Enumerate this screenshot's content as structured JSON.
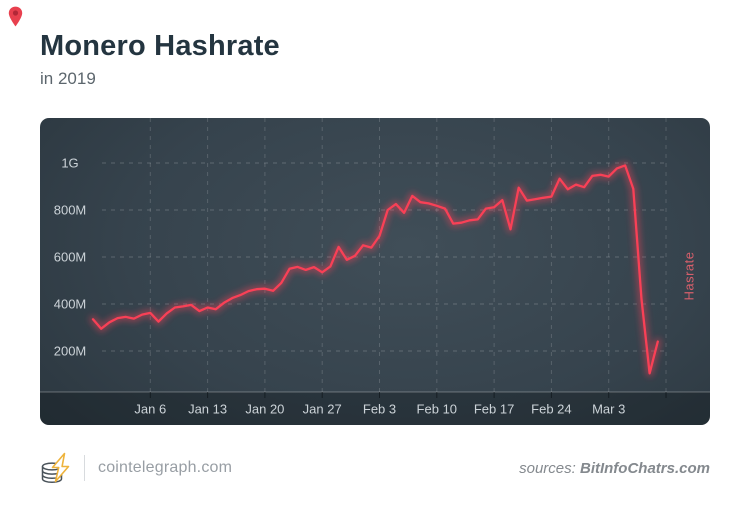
{
  "header": {
    "title": "Monero Hashrate",
    "subtitle": "in 2019"
  },
  "footer": {
    "site": "cointelegraph.com",
    "sources_label": "sources:",
    "source_name": "BitInfoChatrs.com"
  },
  "icons": {
    "pin": "location-pin-icon",
    "logo": "cointelegraph-coin-stack-lightning-logo"
  },
  "colors": {
    "pin": "#e8404e",
    "title_text": "#243540",
    "line": "#f94056",
    "line_glow": "rgba(249,64,86,0.45)",
    "panel_dark": "#222c33",
    "grid": "rgba(255,255,255,0.20)",
    "tick_text": "#ccd3d8",
    "right_axis_title": "#d75f6b",
    "logo_gold": "#eeb33c",
    "logo_coin": "#4a535a"
  },
  "chart_data": {
    "type": "line",
    "title": "Monero Hashrate",
    "subtitle": "in 2019",
    "ylabel_right": "Hasrate",
    "unit": "hashes per second",
    "ylim": [
      0,
      1180000000
    ],
    "grid": "dashed",
    "legend_position": "none",
    "y_ticks": [
      {
        "label": "1G",
        "value": 1000
      },
      {
        "label": "800M",
        "value": 800
      },
      {
        "label": "600M",
        "value": 600
      },
      {
        "label": "400M",
        "value": 400
      },
      {
        "label": "200M",
        "value": 200
      }
    ],
    "x_ticks": [
      {
        "label": "Jan 6",
        "day_offset": 7
      },
      {
        "label": "Jan 13",
        "day_offset": 14
      },
      {
        "label": "Jan 20",
        "day_offset": 21
      },
      {
        "label": "Jan 27",
        "day_offset": 28
      },
      {
        "label": "Feb 3",
        "day_offset": 35
      },
      {
        "label": "Feb 10",
        "day_offset": 42
      },
      {
        "label": "Feb 17",
        "day_offset": 49
      },
      {
        "label": "Feb 24",
        "day_offset": 56
      },
      {
        "label": "Mar 3",
        "day_offset": 63
      },
      {
        "label": "",
        "day_offset": 70
      }
    ],
    "value_unit_of_points": "MH/s",
    "series": [
      {
        "name": "Hashrate",
        "color": "#f94056",
        "points": [
          [
            "Dec 30",
            335
          ],
          [
            "Dec 31",
            295
          ],
          [
            "Jan 1",
            322
          ],
          [
            "Jan 2",
            340
          ],
          [
            "Jan 3",
            345
          ],
          [
            "Jan 4",
            338
          ],
          [
            "Jan 5",
            355
          ],
          [
            "Jan 6",
            362
          ],
          [
            "Jan 7",
            325
          ],
          [
            "Jan 8",
            360
          ],
          [
            "Jan 9",
            385
          ],
          [
            "Jan 10",
            390
          ],
          [
            "Jan 11",
            396
          ],
          [
            "Jan 12",
            370
          ],
          [
            "Jan 13",
            385
          ],
          [
            "Jan 14",
            378
          ],
          [
            "Jan 15",
            405
          ],
          [
            "Jan 16",
            425
          ],
          [
            "Jan 17",
            438
          ],
          [
            "Jan 18",
            455
          ],
          [
            "Jan 19",
            463
          ],
          [
            "Jan 20",
            465
          ],
          [
            "Jan 21",
            456
          ],
          [
            "Jan 22",
            490
          ],
          [
            "Jan 23",
            550
          ],
          [
            "Jan 24",
            558
          ],
          [
            "Jan 25",
            545
          ],
          [
            "Jan 26",
            557
          ],
          [
            "Jan 27",
            535
          ],
          [
            "Jan 28",
            560
          ],
          [
            "Jan 29",
            643
          ],
          [
            "Jan 30",
            588
          ],
          [
            "Jan 31",
            605
          ],
          [
            "Feb 1",
            650
          ],
          [
            "Feb 2",
            640
          ],
          [
            "Feb 3",
            690
          ],
          [
            "Feb 4",
            800
          ],
          [
            "Feb 5",
            825
          ],
          [
            "Feb 6",
            788
          ],
          [
            "Feb 7",
            860
          ],
          [
            "Feb 8",
            833
          ],
          [
            "Feb 9",
            828
          ],
          [
            "Feb 10",
            818
          ],
          [
            "Feb 11",
            806
          ],
          [
            "Feb 12",
            742
          ],
          [
            "Feb 13",
            746
          ],
          [
            "Feb 14",
            756
          ],
          [
            "Feb 15",
            760
          ],
          [
            "Feb 16",
            806
          ],
          [
            "Feb 17",
            812
          ],
          [
            "Feb 18",
            842
          ],
          [
            "Feb 19",
            718
          ],
          [
            "Feb 20",
            895
          ],
          [
            "Feb 21",
            840
          ],
          [
            "Feb 22",
            846
          ],
          [
            "Feb 23",
            852
          ],
          [
            "Feb 24",
            857
          ],
          [
            "Feb 25",
            933
          ],
          [
            "Feb 26",
            888
          ],
          [
            "Feb 27",
            908
          ],
          [
            "Feb 28",
            897
          ],
          [
            "Mar 1",
            945
          ],
          [
            "Mar 2",
            950
          ],
          [
            "Mar 3",
            942
          ],
          [
            "Mar 4",
            977
          ],
          [
            "Mar 5",
            990
          ],
          [
            "Mar 6",
            890
          ],
          [
            "Mar 7",
            420
          ],
          [
            "Mar 8",
            105
          ],
          [
            "Mar 9",
            240
          ]
        ]
      }
    ]
  }
}
